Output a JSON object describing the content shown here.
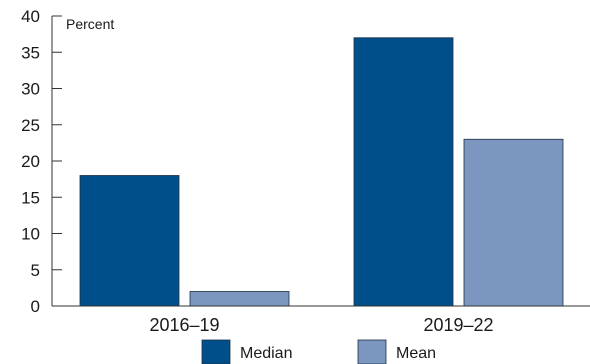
{
  "chart_data": {
    "type": "bar",
    "title": "",
    "xlabel": "",
    "ylabel": "Percent",
    "ylim": [
      0,
      40
    ],
    "yticks": [
      0,
      5,
      10,
      15,
      20,
      25,
      30,
      35,
      40
    ],
    "grid": false,
    "legend_position": "bottom",
    "categories": [
      "2016–19",
      "2019–22"
    ],
    "series": [
      {
        "name": "Median",
        "color": "#004f8a",
        "values": [
          18,
          37
        ]
      },
      {
        "name": "Mean",
        "color": "#7b97bf",
        "values": [
          2,
          23
        ]
      }
    ]
  }
}
